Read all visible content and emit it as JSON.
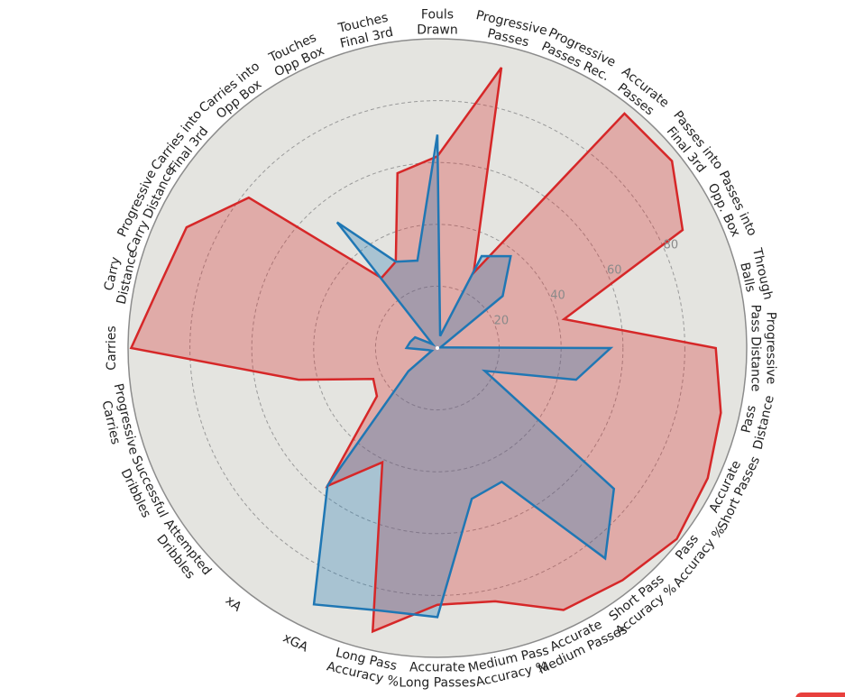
{
  "chart_data": {
    "type": "radar",
    "title": "",
    "range": [
      0,
      100
    ],
    "ring_ticks": [
      20,
      40,
      60,
      80
    ],
    "grid": true,
    "categories": [
      [
        "Fouls",
        "Drawn"
      ],
      [
        "Progressive",
        "Passes"
      ],
      [
        "Progressive",
        "Passes Rec."
      ],
      [
        "Accurate",
        "Passes"
      ],
      [
        "Passes into",
        "Final 3rd"
      ],
      [
        "Passes into",
        "Opp. Box"
      ],
      [
        "Through",
        "Balls"
      ],
      [
        "Progressive",
        "Pass Distance"
      ],
      [
        "Pass",
        "Distance"
      ],
      [
        "Accurate",
        "Short Passes"
      ],
      [
        "Pass",
        "Accuracy %"
      ],
      [
        "Short Pass",
        "Accuracy %"
      ],
      [
        "Accurate",
        "Medium Passes"
      ],
      [
        "Medium Pass",
        "Accuracy %"
      ],
      [
        "Accurate",
        "Long Passes"
      ],
      [
        "Long Pass",
        "Accuracy %"
      ],
      [
        "xGA"
      ],
      [
        "xA"
      ],
      [
        "Attempted",
        "Dribbles"
      ],
      [
        "Successful",
        "Dribbles"
      ],
      [
        "Progressive",
        "Carries"
      ],
      [
        "Carries"
      ],
      [
        "Carry",
        "Distance"
      ],
      [
        "Progressive",
        "Carry Distance"
      ],
      [
        "Carries into",
        "Final 3rd"
      ],
      [
        "Carries into",
        "Opp Box"
      ],
      [
        "Touches",
        "Opp Box"
      ],
      [
        "Touches",
        "Final 3rd"
      ]
    ],
    "series": [
      {
        "color": "#d62728",
        "values": [
          62,
          93,
          27,
          97,
          97,
          88,
          42,
          90,
          94,
          97,
          99,
          96,
          94,
          84,
          83,
          94,
          41,
          57,
          25,
          23,
          46,
          99,
          92,
          90,
          78,
          29,
          31,
          58
        ]
      },
      {
        "color": "#1f77b4",
        "values": [
          69,
          4,
          33,
          38,
          27,
          2,
          1,
          56,
          46,
          17,
          73,
          87,
          48,
          50,
          87,
          87,
          92,
          57,
          12,
          2,
          3,
          10,
          9,
          8,
          2,
          52,
          31,
          29
        ]
      }
    ]
  },
  "colors": {
    "plot_background": "#e4e4e0",
    "outer_ring": "#8c8c8c",
    "grid": "#9a9a9a",
    "accent_tab": "#e8403d"
  }
}
